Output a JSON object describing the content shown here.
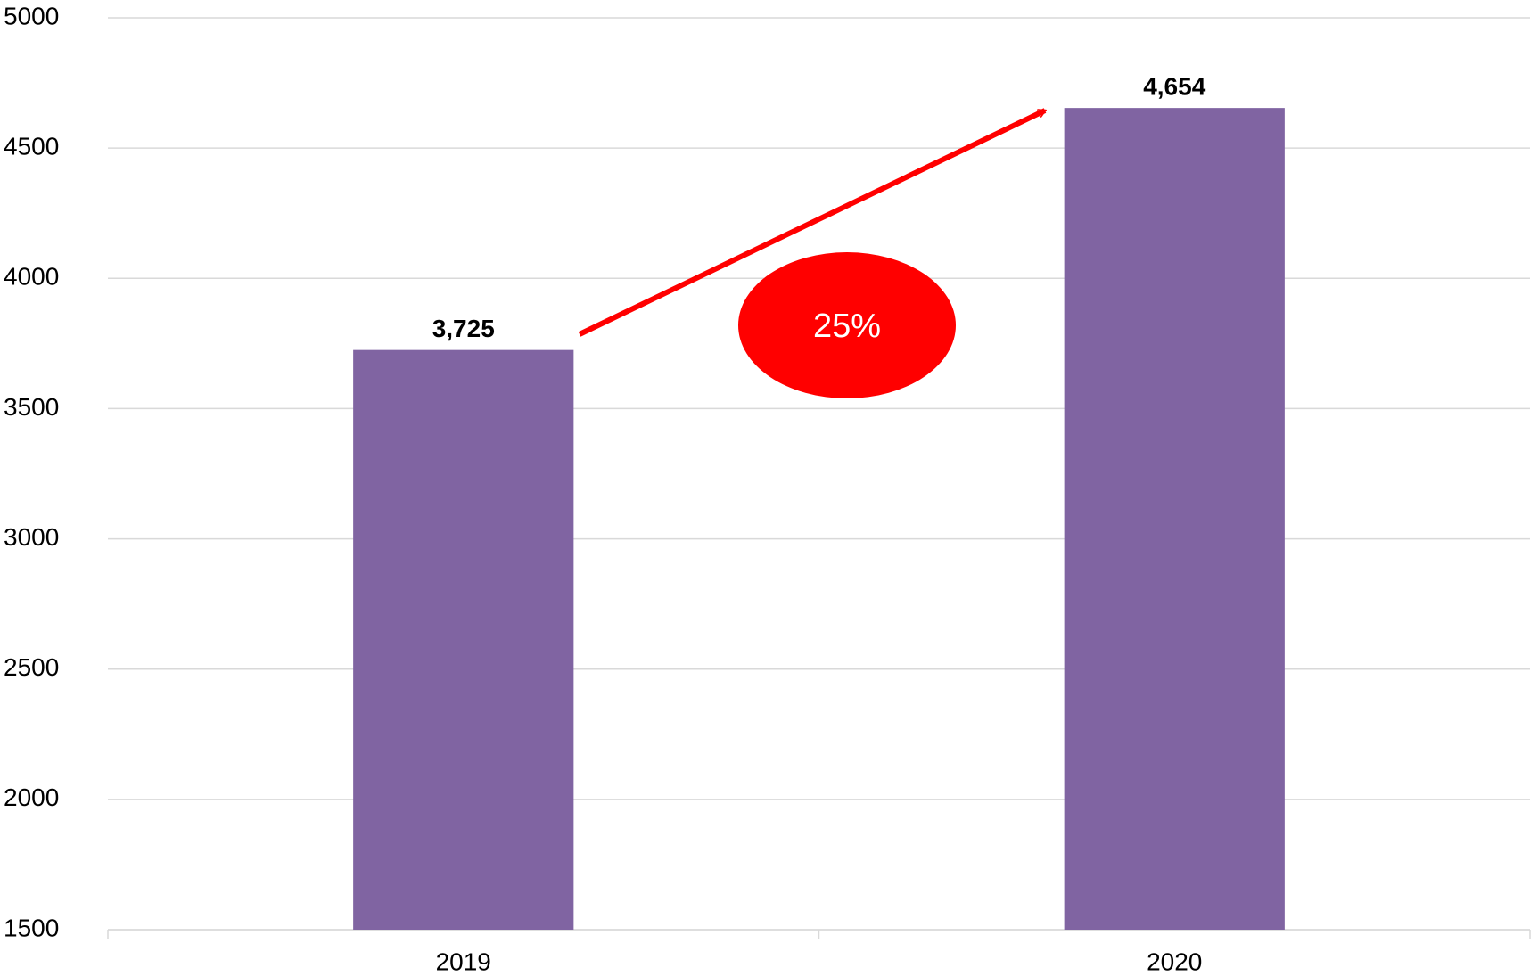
{
  "chart_data": {
    "type": "bar",
    "categories": [
      "2019",
      "2020"
    ],
    "values": [
      3725,
      4654
    ],
    "value_labels": [
      "3,725",
      "4,654"
    ],
    "color": "#8064a2",
    "ylim": [
      1500,
      5000
    ],
    "yticks": [
      1500,
      2000,
      2500,
      3000,
      3500,
      4000,
      4500,
      5000
    ],
    "grid": true,
    "annotation": "25%",
    "annotation_color": "#ff0000"
  }
}
